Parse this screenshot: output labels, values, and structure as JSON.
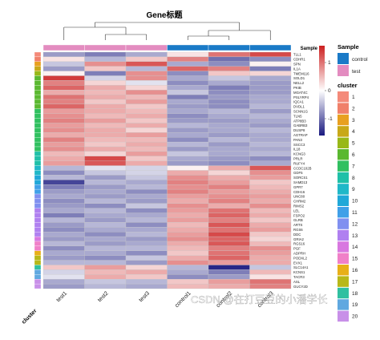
{
  "chart_data": {
    "type": "heatmap",
    "title": "Gene标题",
    "columns": [
      "test1",
      "test2",
      "test3",
      "control1",
      "control2",
      "control3"
    ],
    "column_groups": [
      "test",
      "test",
      "test",
      "control",
      "control",
      "control"
    ],
    "row_axis_label": "cluster",
    "row_labels": [
      "TLL1",
      "CDHR1",
      "SPN",
      "IL1A",
      "TMEM116",
      "SOLD1",
      "NELL2",
      "PKIB",
      "MGAT4C",
      "PSLYRP4",
      "IQCA1",
      "DVDL1",
      "SCNN1G",
      "TLN5",
      "ATP8B3",
      "GABRB3",
      "DUSP8",
      "AGTRAP",
      "PAN3",
      "SSCC3",
      "IL18",
      "KCNG3",
      "PRLR",
      "RUFY4",
      "CCDC102B",
      "GDF5",
      "SORCS1",
      "SAMD13",
      "GPR7",
      "CDH16",
      "UNC80",
      "CHRM2",
      "RIMS2",
      "LEL",
      "FSPO2",
      "GLRB",
      "ARTS",
      "RGS6",
      "DDC",
      "GRIA2",
      "RGS16",
      "PGF",
      "ADPRH",
      "PODXL2",
      "EVX1",
      "SLC14A1",
      "KCNS1",
      "TACR3",
      "ASL",
      "GUCY2D"
    ],
    "row_clusters": [
      1,
      2,
      3,
      4,
      5,
      6,
      6,
      6,
      6,
      6,
      6,
      6,
      7,
      7,
      7,
      7,
      7,
      7,
      7,
      7,
      7,
      8,
      8,
      8,
      9,
      9,
      10,
      10,
      11,
      11,
      12,
      12,
      12,
      13,
      13,
      13,
      13,
      13,
      13,
      14,
      15,
      15,
      16,
      17,
      17,
      18,
      19,
      19,
      20,
      20
    ],
    "values": [
      [
        -0.7,
        -0.9,
        -0.6,
        0.2,
        1.0,
        1.3
      ],
      [
        0.2,
        -0.5,
        0.4,
        0.9,
        -1.0,
        -0.8
      ],
      [
        -0.4,
        0.8,
        1.2,
        -0.6,
        -0.8,
        0.1
      ],
      [
        -0.7,
        0.4,
        -0.5,
        1.1,
        0.9,
        -0.9
      ],
      [
        0.1,
        -0.9,
        0.8,
        -0.8,
        0.4,
        0.3
      ],
      [
        1.4,
        -0.3,
        0.8,
        -0.6,
        -0.4,
        -0.6
      ],
      [
        0.9,
        0.3,
        -0.2,
        -0.8,
        -0.6,
        -0.7
      ],
      [
        1.1,
        0.6,
        0.3,
        -0.6,
        -0.9,
        -0.7
      ],
      [
        0.6,
        0.5,
        0.8,
        -0.4,
        -0.8,
        -0.7
      ],
      [
        1.0,
        0.6,
        0.5,
        -0.9,
        -0.7,
        -0.6
      ],
      [
        0.9,
        0.4,
        0.7,
        -0.6,
        -0.8,
        -0.6
      ],
      [
        1.1,
        0.6,
        0.4,
        -0.7,
        -0.8,
        -0.5
      ],
      [
        0.7,
        0.6,
        0.5,
        -0.6,
        -0.5,
        -0.7
      ],
      [
        0.8,
        0.5,
        0.6,
        -0.8,
        -0.6,
        -0.5
      ],
      [
        0.9,
        0.7,
        0.4,
        -0.7,
        -0.7,
        -0.6
      ],
      [
        0.7,
        0.5,
        0.6,
        -0.5,
        -0.6,
        -0.7
      ],
      [
        0.8,
        0.6,
        0.3,
        -0.7,
        -0.6,
        -0.5
      ],
      [
        0.6,
        0.6,
        0.7,
        -0.6,
        -0.7,
        -0.6
      ],
      [
        0.9,
        0.5,
        0.5,
        -0.8,
        -0.5,
        -0.6
      ],
      [
        0.7,
        0.4,
        0.6,
        -0.5,
        -0.7,
        -0.5
      ],
      [
        0.8,
        0.6,
        0.5,
        -0.7,
        -0.6,
        -0.6
      ],
      [
        0.5,
        0.3,
        0.7,
        -0.4,
        -0.6,
        -0.5
      ],
      [
        0.6,
        1.3,
        0.4,
        -0.6,
        -0.7,
        -0.8
      ],
      [
        0.7,
        1.2,
        0.6,
        -0.7,
        -0.8,
        -0.6
      ],
      [
        -0.5,
        -0.2,
        -0.3,
        0.1,
        0.6,
        1.2
      ],
      [
        -0.8,
        -0.4,
        -0.3,
        0.6,
        0.3,
        0.8
      ],
      [
        -0.5,
        -0.7,
        -0.4,
        0.8,
        0.6,
        0.7
      ],
      [
        -1.3,
        -0.5,
        -0.6,
        0.9,
        0.7,
        0.4
      ],
      [
        -0.9,
        -0.7,
        -0.5,
        0.8,
        0.9,
        0.5
      ],
      [
        -0.7,
        -0.6,
        -0.8,
        0.9,
        0.7,
        0.6
      ],
      [
        -0.6,
        -0.7,
        -0.6,
        0.7,
        0.8,
        0.7
      ],
      [
        -0.8,
        -0.5,
        -0.7,
        0.6,
        0.9,
        0.6
      ],
      [
        -0.7,
        -0.8,
        -0.4,
        0.8,
        0.6,
        0.8
      ],
      [
        -0.6,
        -0.5,
        -0.8,
        0.7,
        1.0,
        0.5
      ],
      [
        -0.9,
        -0.6,
        -0.6,
        0.6,
        1.1,
        0.6
      ],
      [
        -0.5,
        -0.7,
        -0.5,
        0.7,
        0.9,
        0.4
      ],
      [
        -0.7,
        -0.5,
        -0.8,
        0.5,
        1.2,
        0.6
      ],
      [
        -0.8,
        -0.6,
        -0.6,
        0.6,
        1.0,
        0.7
      ],
      [
        -0.6,
        -0.8,
        -0.5,
        0.7,
        1.3,
        0.4
      ],
      [
        -0.7,
        -0.6,
        -0.7,
        0.8,
        1.1,
        0.3
      ],
      [
        -0.5,
        -0.7,
        -0.6,
        0.6,
        1.2,
        0.5
      ],
      [
        -0.8,
        -0.5,
        -0.5,
        0.5,
        0.9,
        0.8
      ],
      [
        -0.6,
        -0.6,
        -0.8,
        0.4,
        1.0,
        0.7
      ],
      [
        -0.7,
        -0.8,
        -0.4,
        0.6,
        1.1,
        0.6
      ],
      [
        -0.5,
        -0.5,
        -0.7,
        0.8,
        0.7,
        0.6
      ],
      [
        0.4,
        0.7,
        0.3,
        -0.5,
        -1.5,
        -0.4
      ],
      [
        -0.3,
        0.5,
        0.6,
        -0.6,
        -0.9,
        0.5
      ],
      [
        -0.2,
        0.6,
        0.4,
        -0.8,
        -0.7,
        0.2
      ],
      [
        -0.6,
        -0.4,
        -0.5,
        0.4,
        0.7,
        1.0
      ],
      [
        -0.7,
        -0.5,
        -0.6,
        0.5,
        0.6,
        0.9
      ]
    ],
    "color_scale": {
      "min": -1.6,
      "mid": 0,
      "max": 1.6,
      "low": "#1a1a80",
      "midcolor": "#ffffff",
      "high": "#cc1f1f"
    },
    "colorbar_ticks": [
      1,
      0,
      -1
    ],
    "legend": {
      "sample_title": "Sample",
      "sample_items": [
        {
          "name": "control",
          "color": "#1a7ac7"
        },
        {
          "name": "test",
          "color": "#e38cc0"
        }
      ],
      "cluster_title": "cluster",
      "cluster_items": [
        {
          "name": "1",
          "color": "#f48a7a"
        },
        {
          "name": "2",
          "color": "#f0806a"
        },
        {
          "name": "3",
          "color": "#e8a020"
        },
        {
          "name": "4",
          "color": "#c8a818"
        },
        {
          "name": "5",
          "color": "#98b818"
        },
        {
          "name": "6",
          "color": "#5ab830"
        },
        {
          "name": "7",
          "color": "#30c060"
        },
        {
          "name": "8",
          "color": "#20c0a8"
        },
        {
          "name": "9",
          "color": "#20b8c8"
        },
        {
          "name": "10",
          "color": "#20a8d8"
        },
        {
          "name": "11",
          "color": "#40a0e8"
        },
        {
          "name": "12",
          "color": "#8090f0"
        },
        {
          "name": "13",
          "color": "#b080f0"
        },
        {
          "name": "14",
          "color": "#d878e0"
        },
        {
          "name": "15",
          "color": "#f080c8"
        },
        {
          "name": "16",
          "color": "#e8b018"
        },
        {
          "name": "17",
          "color": "#b8b818"
        },
        {
          "name": "18",
          "color": "#30c0a0"
        },
        {
          "name": "19",
          "color": "#60a8e0"
        },
        {
          "name": "20",
          "color": "#c890e8"
        }
      ]
    },
    "watermark": "CSDN @在打豆豆的小潘学长"
  }
}
